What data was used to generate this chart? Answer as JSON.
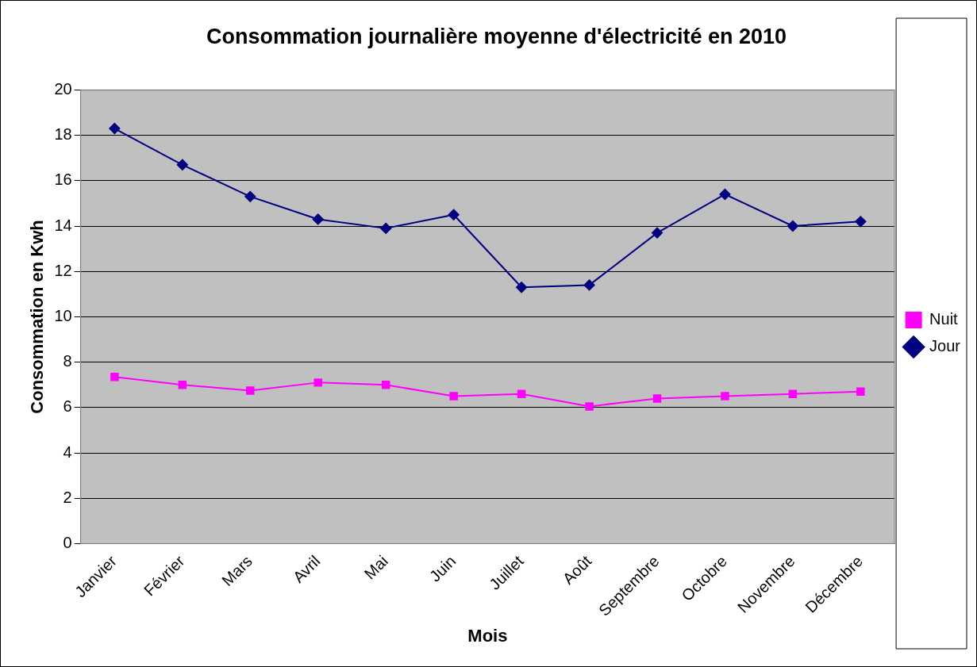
{
  "chart_data": {
    "type": "line",
    "title": "Consommation journalière moyenne d'électricité en 2010",
    "xlabel": "Mois",
    "ylabel": "Consommation en Kwh",
    "categories": [
      "Janvier",
      "Février",
      "Mars",
      "Avril",
      "Mai",
      "Juin",
      "Juillet",
      "Août",
      "Septembre",
      "Octobre",
      "Novembre",
      "Décembre"
    ],
    "series": [
      {
        "name": "Nuit",
        "color": "#ff00ff",
        "marker": "square",
        "values": [
          7.35,
          7.0,
          6.75,
          7.1,
          7.0,
          6.5,
          6.6,
          6.05,
          6.4,
          6.5,
          6.6,
          6.7
        ]
      },
      {
        "name": "Jour",
        "color": "#000080",
        "marker": "diamond",
        "values": [
          18.3,
          16.7,
          15.3,
          14.3,
          13.9,
          14.5,
          11.3,
          11.4,
          13.7,
          15.4,
          14.0,
          14.2
        ]
      }
    ],
    "ylim": [
      0,
      20
    ],
    "yticks": [
      0,
      2,
      4,
      6,
      8,
      10,
      12,
      14,
      16,
      18,
      20
    ],
    "grid": "y",
    "legend": "right",
    "line_style": "solid"
  }
}
